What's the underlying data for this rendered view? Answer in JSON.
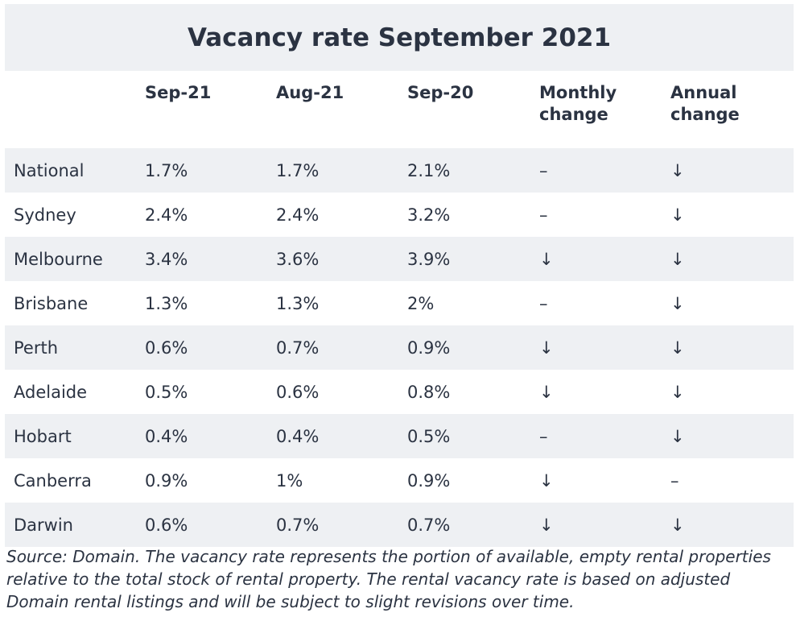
{
  "title": "Vacancy rate September 2021",
  "table": {
    "header": [
      "",
      "Sep-21",
      "Aug-21",
      "Sep-20",
      "Monthly change",
      "Annual change"
    ],
    "rows": [
      [
        "National",
        "1.7%",
        "1.7%",
        "2.1%",
        "–",
        "↓"
      ],
      [
        "Sydney",
        "2.4%",
        "2.4%",
        "3.2%",
        "–",
        "↓"
      ],
      [
        "Melbourne",
        "3.4%",
        "3.6%",
        "3.9%",
        "↓",
        "↓"
      ],
      [
        "Brisbane",
        "1.3%",
        "1.3%",
        "2%",
        "–",
        "↓"
      ],
      [
        "Perth",
        "0.6%",
        "0.7%",
        "0.9%",
        "↓",
        "↓"
      ],
      [
        "Adelaide",
        "0.5%",
        "0.6%",
        "0.8%",
        "↓",
        "↓"
      ],
      [
        "Hobart",
        "0.4%",
        "0.4%",
        "0.5%",
        "–",
        "↓"
      ],
      [
        "Canberra",
        "0.9%",
        "1%",
        "0.9%",
        "↓",
        "–"
      ],
      [
        "Darwin",
        "0.6%",
        "0.7%",
        "0.7%",
        "↓",
        "↓"
      ]
    ]
  },
  "source": "Source: Domain. The vacancy rate represents the portion of available, empty rental properties relative to the total stock of rental property. The rental vacancy rate is based on adjusted Domain rental listings and will be subject to slight revisions over time."
}
